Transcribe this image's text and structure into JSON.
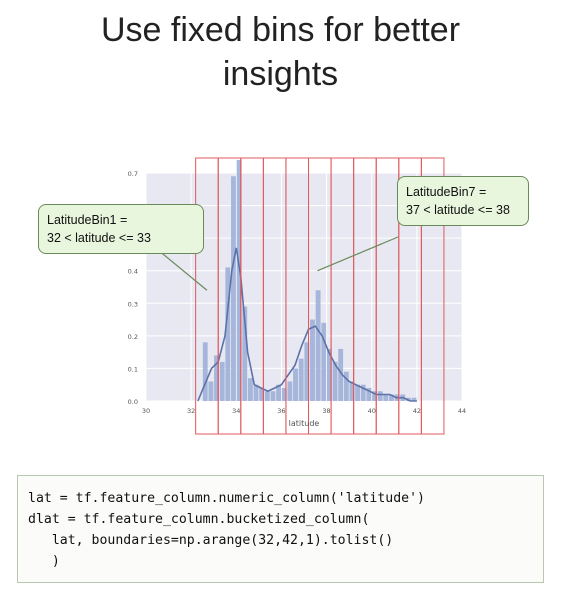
{
  "title_line1": "Use fixed bins for better",
  "title_line2": "insights",
  "callouts": {
    "left": {
      "line1": "LatitudeBin1 =",
      "line2": "32 < latitude <= 33"
    },
    "right": {
      "line1": "LatitudeBin7 =",
      "line2": "37 < latitude <= 38"
    }
  },
  "code_lines": [
    "lat = tf.feature_column.numeric_column('latitude')",
    "dlat = tf.feature_column.bucketized_column(",
    "   lat, boundaries=np.arange(32,42,1).tolist()",
    "   )"
  ],
  "colors": {
    "bar": "#9aabd6",
    "kde": "#5b72a9",
    "plot_bg": "#e8e8f2",
    "bin_line": "#e0585c"
  },
  "chart_data": {
    "type": "histogram",
    "xlabel": "latitude",
    "xlim": [
      30,
      44
    ],
    "ylim": [
      0,
      0.7
    ],
    "x_ticks": [
      30,
      32,
      34,
      36,
      38,
      40,
      42,
      44
    ],
    "y_ticks": [
      "0.0",
      "0.1",
      "0.2",
      "0.3",
      "0.4",
      "0.5",
      "0.6",
      "0.7"
    ],
    "bin_width": 0.25,
    "bars": [
      {
        "x": 32.5,
        "value": 0.18
      },
      {
        "x": 32.75,
        "value": 0.06
      },
      {
        "x": 33.0,
        "value": 0.14
      },
      {
        "x": 33.25,
        "value": 0.12
      },
      {
        "x": 33.5,
        "value": 0.41
      },
      {
        "x": 33.75,
        "value": 0.69
      },
      {
        "x": 34.0,
        "value": 0.74
      },
      {
        "x": 34.25,
        "value": 0.29
      },
      {
        "x": 34.5,
        "value": 0.07
      },
      {
        "x": 34.75,
        "value": 0.05
      },
      {
        "x": 35.0,
        "value": 0.04
      },
      {
        "x": 35.25,
        "value": 0.03
      },
      {
        "x": 35.5,
        "value": 0.03
      },
      {
        "x": 35.75,
        "value": 0.05
      },
      {
        "x": 36.0,
        "value": 0.04
      },
      {
        "x": 36.25,
        "value": 0.06
      },
      {
        "x": 36.5,
        "value": 0.1
      },
      {
        "x": 36.75,
        "value": 0.13
      },
      {
        "x": 37.0,
        "value": 0.18
      },
      {
        "x": 37.25,
        "value": 0.25
      },
      {
        "x": 37.5,
        "value": 0.34
      },
      {
        "x": 37.75,
        "value": 0.24
      },
      {
        "x": 38.0,
        "value": 0.16
      },
      {
        "x": 38.25,
        "value": 0.12
      },
      {
        "x": 38.5,
        "value": 0.16
      },
      {
        "x": 38.75,
        "value": 0.09
      },
      {
        "x": 39.0,
        "value": 0.06
      },
      {
        "x": 39.25,
        "value": 0.05
      },
      {
        "x": 39.5,
        "value": 0.05
      },
      {
        "x": 39.75,
        "value": 0.04
      },
      {
        "x": 40.0,
        "value": 0.03
      },
      {
        "x": 40.25,
        "value": 0.03
      },
      {
        "x": 40.5,
        "value": 0.02
      },
      {
        "x": 40.75,
        "value": 0.02
      },
      {
        "x": 41.0,
        "value": 0.02
      },
      {
        "x": 41.25,
        "value": 0.02
      },
      {
        "x": 41.5,
        "value": 0.01
      },
      {
        "x": 41.75,
        "value": 0.01
      }
    ],
    "kde": {
      "x": [
        32.3,
        32.6,
        32.9,
        33.2,
        33.5,
        33.8,
        34.0,
        34.2,
        34.5,
        34.8,
        35.1,
        35.4,
        35.7,
        36.0,
        36.3,
        36.6,
        36.9,
        37.2,
        37.5,
        37.8,
        38.1,
        38.4,
        38.7,
        39.0,
        39.3,
        39.6,
        39.9,
        40.2,
        40.5,
        40.8,
        41.1,
        41.4,
        41.7,
        42.0
      ],
      "y": [
        0.0,
        0.05,
        0.1,
        0.12,
        0.2,
        0.4,
        0.47,
        0.38,
        0.15,
        0.05,
        0.04,
        0.03,
        0.04,
        0.05,
        0.08,
        0.11,
        0.17,
        0.22,
        0.23,
        0.2,
        0.15,
        0.11,
        0.08,
        0.06,
        0.05,
        0.04,
        0.03,
        0.02,
        0.02,
        0.02,
        0.01,
        0.01,
        0.0,
        0.0
      ]
    },
    "bin_boundaries": [
      32.2,
      33.2,
      34.2,
      35.2,
      36.2,
      37.2,
      38.2,
      39.2,
      40.2,
      41.2,
      42.2,
      43.2
    ],
    "grid": true
  }
}
